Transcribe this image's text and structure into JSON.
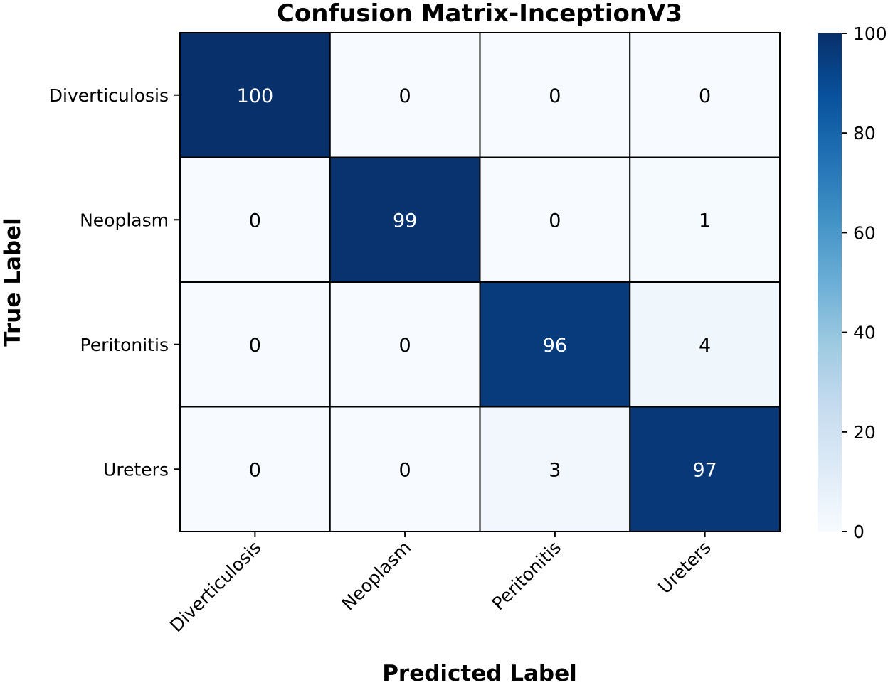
{
  "chart_data": {
    "type": "heatmap",
    "title": "Confusion Matrix-InceptionV3",
    "xlabel": "Predicted Label",
    "ylabel": "True Label",
    "x_categories": [
      "Diverticulosis",
      "Neoplasm",
      "Peritonitis",
      "Ureters"
    ],
    "y_categories": [
      "Diverticulosis",
      "Neoplasm",
      "Peritonitis",
      "Ureters"
    ],
    "values": [
      [
        100,
        0,
        0,
        0
      ],
      [
        0,
        99,
        0,
        1
      ],
      [
        0,
        0,
        96,
        4
      ],
      [
        0,
        0,
        3,
        97
      ]
    ],
    "colorbar": {
      "min": 0,
      "max": 100,
      "ticks": [
        "0",
        "20",
        "40",
        "60",
        "80",
        "100"
      ],
      "colormap": "Blues",
      "low_color": "#f7fbff",
      "high_color": "#08306b"
    },
    "grid": true
  }
}
